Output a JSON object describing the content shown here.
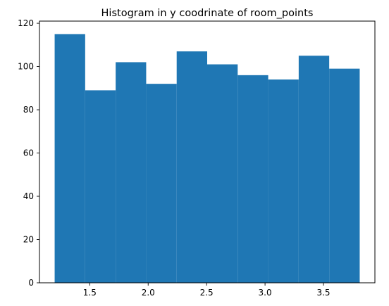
{
  "chart_data": {
    "type": "bar",
    "title": "Histogram in y coodrinate of room_points",
    "xlabel": "",
    "ylabel": "",
    "bins": [
      {
        "x0": 1.2,
        "x1": 1.461,
        "value": 115
      },
      {
        "x0": 1.461,
        "x1": 1.722,
        "value": 89
      },
      {
        "x0": 1.722,
        "x1": 1.983,
        "value": 102
      },
      {
        "x0": 1.983,
        "x1": 2.244,
        "value": 92
      },
      {
        "x0": 2.244,
        "x1": 2.505,
        "value": 107
      },
      {
        "x0": 2.505,
        "x1": 2.766,
        "value": 101
      },
      {
        "x0": 2.766,
        "x1": 3.027,
        "value": 96
      },
      {
        "x0": 3.027,
        "x1": 3.288,
        "value": 94
      },
      {
        "x0": 3.288,
        "x1": 3.549,
        "value": 105
      },
      {
        "x0": 3.549,
        "x1": 3.81,
        "value": 99
      }
    ],
    "xlim": [
      1.07,
      3.94
    ],
    "ylim": [
      0,
      121
    ],
    "xticks": [
      1.5,
      2.0,
      2.5,
      3.0,
      3.5
    ],
    "xtick_labels": [
      "1.5",
      "2.0",
      "2.5",
      "3.0",
      "3.5"
    ],
    "yticks": [
      0,
      20,
      40,
      60,
      80,
      100,
      120
    ],
    "ytick_labels": [
      "0",
      "20",
      "40",
      "60",
      "80",
      "100",
      "120"
    ],
    "bar_color": "#1f77b4",
    "grid": false,
    "legend": "none"
  }
}
